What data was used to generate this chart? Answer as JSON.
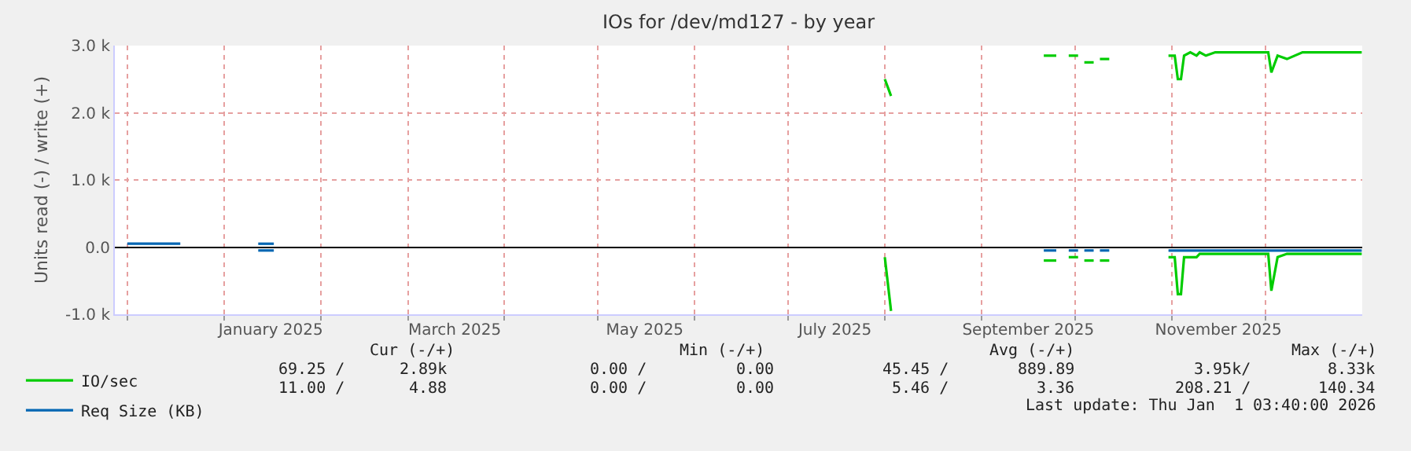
{
  "chart_data": {
    "type": "line",
    "title": "IOs for /dev/md127 - by year",
    "ylabel": "Units read (-) / write (+)",
    "x": [
      "2024-12-01",
      "2024-12-06",
      "2024-12-11",
      "2024-12-18",
      "2024-12-25",
      "2025-01-12",
      "2025-01-17",
      "2025-07-01",
      "2025-08-01",
      "2025-08-03",
      "2025-09-01",
      "2025-09-21",
      "2025-09-25",
      "2025-09-27",
      "2025-09-29",
      "2025-10-02",
      "2025-10-03",
      "2025-10-04",
      "2025-10-07",
      "2025-10-08",
      "2025-10-09",
      "2025-10-12",
      "2025-10-20",
      "2025-10-31",
      "2025-11-02",
      "2025-11-03",
      "2025-11-04",
      "2025-11-05",
      "2025-11-07",
      "2025-11-09",
      "2025-11-10",
      "2025-11-12",
      "2025-11-15",
      "2025-11-24",
      "2025-12-02",
      "2025-12-03",
      "2025-12-05",
      "2025-12-08",
      "2025-12-13",
      "2025-12-18",
      "2026-01-01"
    ],
    "series": [
      {
        "name": "IO/sec",
        "color": "#00cc00",
        "values": [
          null,
          null,
          null,
          null,
          null,
          null,
          null,
          null,
          2500,
          2250,
          null,
          2850,
          2850,
          null,
          2850,
          2850,
          null,
          2750,
          2750,
          null,
          2800,
          2800,
          null,
          2850,
          2850,
          2500,
          2500,
          2850,
          2900,
          2850,
          2900,
          2850,
          2900,
          2900,
          2900,
          2600,
          2850,
          2800,
          2900,
          2900,
          2900
        ]
      },
      {
        "color": "#00cc00",
        "values": [
          null,
          null,
          null,
          null,
          null,
          null,
          null,
          null,
          -150,
          -950,
          null,
          -200,
          -200,
          null,
          -150,
          -150,
          null,
          -200,
          -200,
          null,
          -200,
          -200,
          null,
          -150,
          -150,
          -700,
          -700,
          -150,
          -150,
          -150,
          -100,
          -100,
          -100,
          -100,
          -100,
          -650,
          -150,
          -100,
          -100,
          -100,
          -100
        ]
      },
      {
        "name": "Req Size (KB)",
        "color": "#0066b3",
        "values": [
          50,
          50,
          50,
          50,
          null,
          50,
          50,
          null,
          null,
          null,
          null,
          null,
          null,
          null,
          null,
          null,
          null,
          null,
          null,
          null,
          null,
          null,
          null,
          null,
          null,
          null,
          null,
          null,
          null,
          null,
          null,
          null,
          null,
          null,
          null,
          null,
          null,
          null,
          null,
          null,
          null
        ]
      },
      {
        "color": "#0066b3",
        "values": [
          null,
          null,
          null,
          null,
          null,
          -50,
          -50,
          null,
          null,
          null,
          null,
          -50,
          -50,
          null,
          -50,
          -50,
          null,
          -50,
          -50,
          null,
          -50,
          -50,
          null,
          -50,
          -50,
          -50,
          -50,
          -50,
          -50,
          -50,
          -50,
          -50,
          -50,
          -50,
          -50,
          -50,
          -50,
          -50,
          -50,
          -50,
          -50
        ]
      }
    ],
    "xlim": [
      "2024-11-27",
      "2026-01-01T03:40"
    ],
    "xticks": [
      {
        "value": "2024-12-01",
        "label": null
      },
      {
        "value": "2025-01-01",
        "label": null
      },
      {
        "value": "2025-01-16",
        "label": "January 2025"
      },
      {
        "value": "2025-02-01",
        "label": null
      },
      {
        "value": "2025-03-01",
        "label": null
      },
      {
        "value": "2025-03-16",
        "label": "March 2025"
      },
      {
        "value": "2025-04-01",
        "label": null
      },
      {
        "value": "2025-05-01",
        "label": null
      },
      {
        "value": "2025-05-16",
        "label": "May 2025"
      },
      {
        "value": "2025-06-01",
        "label": null
      },
      {
        "value": "2025-07-01",
        "label": null
      },
      {
        "value": "2025-07-16",
        "label": "July 2025"
      },
      {
        "value": "2025-08-01",
        "label": null
      },
      {
        "value": "2025-09-01",
        "label": null
      },
      {
        "value": "2025-09-16",
        "label": "September 2025"
      },
      {
        "value": "2025-10-01",
        "label": null
      },
      {
        "value": "2025-11-01",
        "label": null
      },
      {
        "value": "2025-11-16",
        "label": "November 2025"
      },
      {
        "value": "2025-12-01",
        "label": null
      }
    ],
    "ylim": [
      -1000,
      3000
    ],
    "yticks": [
      {
        "value": -1000,
        "label": "-1.0 k"
      },
      {
        "value": 0,
        "label": "0.0"
      },
      {
        "value": 1000,
        "label": "1.0 k"
      },
      {
        "value": 2000,
        "label": "2.0 k"
      },
      {
        "value": 3000,
        "label": "3.0 k"
      }
    ],
    "grid": true,
    "legend": "bottom left",
    "marker": "none",
    "line_style": "solid",
    "annotations": [
      "Cur (-/+)",
      "Min (-/+)",
      "Avg (-/+)",
      "Max (-/+)",
      "69.25 /",
      "2.89k",
      "0.00 /",
      "0.00",
      "45.45 /",
      "889.89",
      "3.95k/",
      "8.33k",
      "11.00 /",
      "4.88",
      "0.00 /",
      "0.00",
      "5.46 /",
      "3.36",
      "208.21 /",
      "140.34",
      "Last update: Thu Jan  1 03:40:00 2026"
    ]
  }
}
